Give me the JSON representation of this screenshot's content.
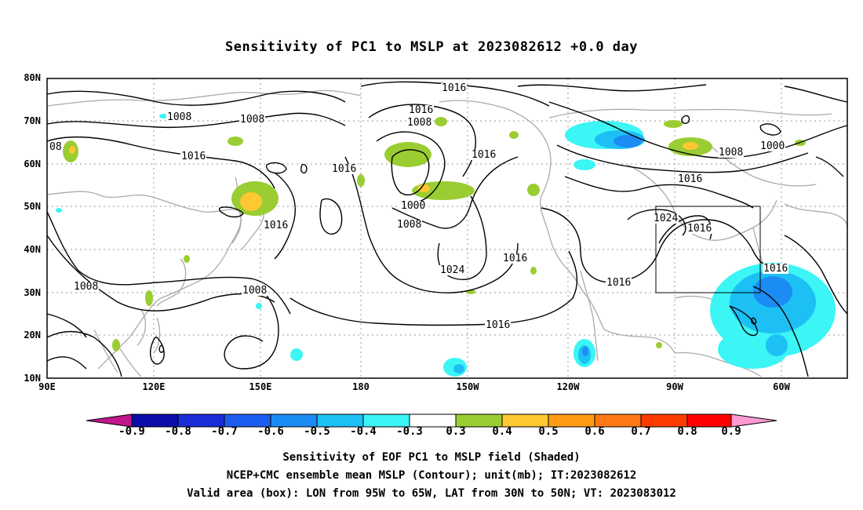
{
  "title": "Sensitivity of PC1 to MSLP at 2023082612 +0.0 day",
  "axes": {
    "lat_ticks": [
      "80N",
      "70N",
      "60N",
      "50N",
      "40N",
      "30N",
      "20N",
      "10N"
    ],
    "lon_ticks": [
      "90E",
      "120E",
      "150E",
      "180",
      "150W",
      "120W",
      "90W",
      "60W"
    ]
  },
  "contour_labels": [
    "1016",
    "1008",
    "1008",
    "08",
    "1016",
    "1016",
    "1016",
    "1008",
    "1016",
    "1016",
    "1000",
    "1008",
    "1024",
    "1016",
    "1016",
    "1008",
    "1008",
    "1016",
    "1016",
    "1024",
    "1016",
    "1016",
    "1000",
    "1008",
    "1016"
  ],
  "colorbar": {
    "labels": [
      "-0.9",
      "-0.8",
      "-0.7",
      "-0.6",
      "-0.5",
      "-0.4",
      "-0.3",
      "0.3",
      "0.4",
      "0.5",
      "0.6",
      "0.7",
      "0.8",
      "0.9"
    ],
    "colors": [
      "#c0168c",
      "#0c0ca8",
      "#1a2cd8",
      "#1c5cf0",
      "#1c8cf5",
      "#1cc0f5",
      "#3cf5f5",
      "#ffffff",
      "#9acd32",
      "#ffc832",
      "#ff9b14",
      "#ff7814",
      "#ff3c00",
      "#ff0000",
      "#ff9bd2"
    ]
  },
  "captions": [
    "Sensitivity of EOF PC1 to MSLP field (Shaded)",
    "NCEP+CMC ensemble mean MSLP (Contour); unit(mb); IT:2023082612",
    "Valid area (box): LON from 95W to 65W, LAT from 30N to 50N; VT: 2023083012"
  ],
  "valid_box": {
    "lon_min": -95,
    "lon_max": -65,
    "lat_min": 30,
    "lat_max": 50
  }
}
